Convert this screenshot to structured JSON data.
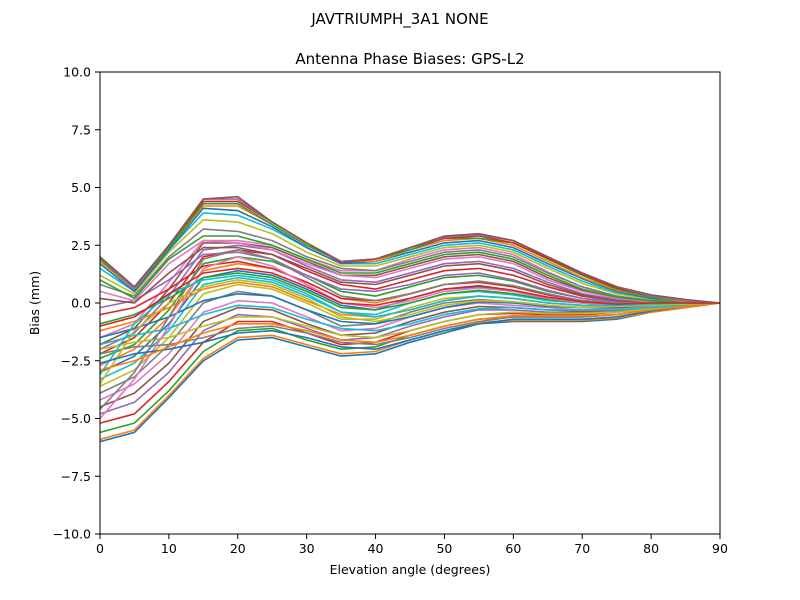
{
  "figure": {
    "suptitle": "JAVTRIUMPH_3A1  NONE"
  },
  "chart_data": {
    "type": "line",
    "title": "Antenna Phase Biases: GPS-L2",
    "xlabel": "Elevation angle (degrees)",
    "ylabel": "Bias (mm)",
    "xlim": [
      0,
      90
    ],
    "ylim": [
      -10,
      10
    ],
    "xticks": [
      0,
      10,
      20,
      30,
      40,
      50,
      60,
      70,
      80,
      90
    ],
    "xtick_labels": [
      "0",
      "10",
      "20",
      "30",
      "40",
      "50",
      "60",
      "70",
      "80",
      "90"
    ],
    "yticks": [
      -10,
      -7.5,
      -5,
      -2.5,
      0,
      2.5,
      5,
      7.5,
      10
    ],
    "ytick_labels": [
      "−10.0",
      "−7.5",
      "−5.0",
      "−2.5",
      "0.0",
      "2.5",
      "5.0",
      "7.5",
      "10.0"
    ],
    "grid": false,
    "colors": [
      "#1f77b4",
      "#ff7f0e",
      "#2ca02c",
      "#d62728",
      "#9467bd",
      "#8c564b",
      "#e377c2",
      "#7f7f7f",
      "#bcbd22",
      "#17becf"
    ],
    "x": [
      0,
      5,
      10,
      15,
      20,
      25,
      30,
      35,
      40,
      45,
      50,
      55,
      60,
      65,
      70,
      75,
      80,
      85,
      90
    ],
    "series": [
      {
        "values": [
          -6.0,
          -5.6,
          -4.1,
          -2.5,
          -1.6,
          -1.5,
          -1.9,
          -2.3,
          -2.2,
          -1.7,
          -1.3,
          -0.9,
          -0.8,
          -0.8,
          -0.8,
          -0.7,
          -0.4,
          -0.2,
          0.0
        ]
      },
      {
        "values": [
          -5.9,
          -5.5,
          -4.0,
          -2.4,
          -1.5,
          -1.4,
          -1.8,
          -2.2,
          -2.1,
          -1.6,
          -1.2,
          -0.85,
          -0.75,
          -0.75,
          -0.75,
          -0.65,
          -0.4,
          -0.2,
          0.0
        ]
      },
      {
        "values": [
          -5.6,
          -5.2,
          -3.8,
          -2.1,
          -1.2,
          -1.1,
          -1.6,
          -2.0,
          -1.9,
          -1.4,
          -1.0,
          -0.7,
          -0.6,
          -0.6,
          -0.6,
          -0.5,
          -0.3,
          -0.15,
          0.0
        ]
      },
      {
        "values": [
          -5.2,
          -4.8,
          -3.4,
          -1.7,
          -0.8,
          -0.8,
          -1.3,
          -1.8,
          -1.7,
          -1.2,
          -0.8,
          -0.5,
          -0.45,
          -0.5,
          -0.5,
          -0.4,
          -0.25,
          -0.1,
          0.0
        ]
      },
      {
        "values": [
          -4.8,
          -4.3,
          -3.0,
          -1.2,
          -0.5,
          -0.6,
          -1.1,
          -1.6,
          -1.5,
          -1.0,
          -0.6,
          -0.3,
          -0.3,
          -0.4,
          -0.4,
          -0.35,
          -0.2,
          -0.1,
          0.0
        ]
      },
      {
        "values": [
          -4.5,
          -3.9,
          -2.6,
          -0.8,
          -0.2,
          -0.3,
          -0.9,
          -1.4,
          -1.3,
          -0.8,
          -0.4,
          -0.15,
          -0.2,
          -0.3,
          -0.35,
          -0.3,
          -0.2,
          -0.1,
          0.0
        ]
      },
      {
        "values": [
          -4.2,
          -3.5,
          -2.2,
          -0.4,
          0.1,
          0.0,
          -0.6,
          -1.2,
          -1.1,
          -0.6,
          -0.2,
          0.0,
          -0.1,
          -0.2,
          -0.3,
          -0.25,
          -0.15,
          -0.05,
          0.0
        ]
      },
      {
        "values": [
          -3.9,
          -3.2,
          -1.8,
          0.0,
          0.5,
          0.3,
          -0.3,
          -1.0,
          -0.9,
          -0.4,
          0.0,
          0.15,
          0.05,
          -0.1,
          -0.2,
          -0.2,
          -0.1,
          -0.05,
          0.0
        ]
      },
      {
        "values": [
          -3.6,
          -2.9,
          -1.5,
          0.4,
          0.8,
          0.6,
          0.0,
          -0.7,
          -0.7,
          -0.2,
          0.2,
          0.3,
          0.2,
          0.0,
          -0.1,
          -0.15,
          -0.1,
          -0.05,
          0.0
        ]
      },
      {
        "values": [
          -3.3,
          -2.6,
          -1.2,
          0.8,
          1.1,
          0.9,
          0.3,
          -0.4,
          -0.5,
          0.0,
          0.4,
          0.5,
          0.35,
          0.1,
          0.0,
          -0.1,
          -0.05,
          0.0,
          0.0
        ]
      },
      {
        "values": [
          -3.0,
          -2.3,
          -0.9,
          1.1,
          1.4,
          1.2,
          0.6,
          -0.1,
          -0.3,
          0.2,
          0.6,
          0.7,
          0.5,
          0.2,
          0.05,
          -0.05,
          -0.05,
          0.0,
          0.0
        ]
      },
      {
        "values": [
          -2.7,
          -2.0,
          -0.6,
          1.4,
          1.7,
          1.5,
          0.9,
          0.2,
          0.0,
          0.4,
          0.8,
          0.9,
          0.7,
          0.35,
          0.1,
          0.0,
          0.0,
          0.0,
          0.0
        ]
      },
      {
        "values": [
          -2.4,
          -1.8,
          -0.3,
          1.7,
          2.0,
          1.8,
          1.2,
          0.5,
          0.3,
          0.7,
          1.1,
          1.2,
          0.95,
          0.5,
          0.2,
          0.05,
          0.0,
          0.0,
          0.0
        ]
      },
      {
        "values": [
          -2.2,
          -1.5,
          0.0,
          2.0,
          2.3,
          2.1,
          1.4,
          0.8,
          0.6,
          1.0,
          1.4,
          1.5,
          1.2,
          0.7,
          0.3,
          0.1,
          0.05,
          0.0,
          0.0
        ]
      },
      {
        "values": [
          -2.0,
          -1.3,
          0.3,
          2.3,
          2.5,
          2.3,
          1.6,
          1.0,
          0.9,
          1.3,
          1.7,
          1.8,
          1.5,
          0.9,
          0.4,
          0.15,
          0.05,
          0.0,
          0.0
        ]
      },
      {
        "values": [
          -1.8,
          -1.1,
          0.6,
          2.6,
          2.6,
          2.4,
          1.8,
          1.2,
          1.2,
          1.6,
          2.0,
          2.1,
          1.8,
          1.1,
          0.55,
          0.2,
          0.1,
          0.0,
          0.0
        ]
      },
      {
        "values": [
          -1.5,
          -0.9,
          0.9,
          2.7,
          2.7,
          2.5,
          1.9,
          1.4,
          1.4,
          1.9,
          2.3,
          2.4,
          2.1,
          1.35,
          0.7,
          0.3,
          0.1,
          0.0,
          0.0
        ]
      },
      {
        "values": [
          -2.2,
          -1.9,
          -1.8,
          -1.5,
          -1.1,
          -1.0,
          -1.3,
          -1.7,
          -1.8,
          -1.5,
          -1.1,
          -0.8,
          -0.6,
          -0.6,
          -0.6,
          -0.5,
          -0.3,
          -0.15,
          0.0
        ]
      },
      {
        "values": [
          -2.0,
          -1.7,
          -1.5,
          -1.0,
          -0.6,
          -0.6,
          -1.0,
          -1.4,
          -1.5,
          -1.2,
          -0.8,
          -0.5,
          -0.4,
          -0.45,
          -0.45,
          -0.4,
          -0.25,
          -0.1,
          0.0
        ]
      },
      {
        "values": [
          -1.8,
          -1.4,
          -1.1,
          -0.5,
          -0.1,
          -0.2,
          -0.7,
          -1.1,
          -1.2,
          -0.9,
          -0.5,
          -0.25,
          -0.2,
          -0.3,
          -0.3,
          -0.3,
          -0.2,
          -0.1,
          0.0
        ]
      },
      {
        "values": [
          -1.5,
          -1.1,
          -0.6,
          0.1,
          0.4,
          0.3,
          -0.3,
          -0.8,
          -0.9,
          -0.6,
          -0.2,
          0.05,
          0.0,
          -0.15,
          -0.2,
          -0.2,
          -0.1,
          -0.05,
          0.0
        ]
      },
      {
        "values": [
          -1.2,
          -0.8,
          -0.2,
          0.6,
          0.9,
          0.7,
          0.1,
          -0.5,
          -0.6,
          -0.3,
          0.1,
          0.3,
          0.2,
          0.0,
          -0.1,
          -0.1,
          -0.05,
          0.0,
          0.0
        ]
      },
      {
        "values": [
          -0.9,
          -0.5,
          0.2,
          1.1,
          1.3,
          1.1,
          0.5,
          -0.2,
          -0.3,
          0.0,
          0.4,
          0.55,
          0.4,
          0.15,
          0.0,
          -0.05,
          0.0,
          0.0,
          0.0
        ]
      },
      {
        "values": [
          -0.5,
          -0.2,
          0.6,
          1.6,
          1.8,
          1.5,
          0.9,
          0.2,
          0.1,
          0.4,
          0.8,
          0.9,
          0.7,
          0.35,
          0.1,
          0.0,
          0.0,
          0.0,
          0.0
        ]
      },
      {
        "values": [
          -0.2,
          0.1,
          1.0,
          2.1,
          2.2,
          1.9,
          1.2,
          0.6,
          0.5,
          0.8,
          1.2,
          1.3,
          1.0,
          0.55,
          0.2,
          0.05,
          0.0,
          0.0,
          0.0
        ]
      },
      {
        "values": [
          0.2,
          0.0,
          1.3,
          2.4,
          2.4,
          2.1,
          1.5,
          0.9,
          0.8,
          1.2,
          1.6,
          1.7,
          1.4,
          0.8,
          0.35,
          0.1,
          0.05,
          0.0,
          0.0
        ]
      },
      {
        "values": [
          0.5,
          0.1,
          1.7,
          2.7,
          2.6,
          2.3,
          1.7,
          1.2,
          1.1,
          1.5,
          1.9,
          2.0,
          1.7,
          1.0,
          0.5,
          0.2,
          0.05,
          0.0,
          0.0
        ]
      },
      {
        "values": [
          0.8,
          0.3,
          2.0,
          3.2,
          3.1,
          2.7,
          2.0,
          1.5,
          1.4,
          1.8,
          2.2,
          2.3,
          2.0,
          1.3,
          0.7,
          0.3,
          0.1,
          0.0,
          0.0
        ]
      },
      {
        "values": [
          1.2,
          0.4,
          2.2,
          3.6,
          3.5,
          3.0,
          2.2,
          1.6,
          1.6,
          2.0,
          2.4,
          2.5,
          2.2,
          1.5,
          0.85,
          0.4,
          0.15,
          0.05,
          0.0
        ]
      },
      {
        "values": [
          1.5,
          0.5,
          2.3,
          3.9,
          3.8,
          3.2,
          2.4,
          1.7,
          1.7,
          2.1,
          2.5,
          2.6,
          2.3,
          1.6,
          0.95,
          0.45,
          0.2,
          0.05,
          0.0
        ]
      },
      {
        "values": [
          1.7,
          0.5,
          2.3,
          4.1,
          4.0,
          3.3,
          2.4,
          1.7,
          1.8,
          2.2,
          2.6,
          2.7,
          2.4,
          1.7,
          1.05,
          0.5,
          0.2,
          0.05,
          0.0
        ]
      },
      {
        "values": [
          1.8,
          0.6,
          2.4,
          4.2,
          4.2,
          3.4,
          2.5,
          1.8,
          1.8,
          2.3,
          2.7,
          2.8,
          2.5,
          1.8,
          1.1,
          0.55,
          0.25,
          0.05,
          0.0
        ]
      },
      {
        "values": [
          1.9,
          0.6,
          2.4,
          4.3,
          4.3,
          3.4,
          2.5,
          1.8,
          1.9,
          2.3,
          2.8,
          2.8,
          2.6,
          1.9,
          1.2,
          0.6,
          0.25,
          0.1,
          0.0
        ]
      },
      {
        "values": [
          2.0,
          0.6,
          2.5,
          4.4,
          4.4,
          3.5,
          2.6,
          1.8,
          1.9,
          2.4,
          2.8,
          2.9,
          2.6,
          1.95,
          1.25,
          0.65,
          0.3,
          0.1,
          0.0
        ]
      },
      {
        "values": [
          2.0,
          0.6,
          2.5,
          4.5,
          4.5,
          3.5,
          2.6,
          1.8,
          1.9,
          2.4,
          2.85,
          2.95,
          2.7,
          2.0,
          1.3,
          0.7,
          0.3,
          0.1,
          0.0
        ]
      },
      {
        "values": [
          2.0,
          0.7,
          2.5,
          4.5,
          4.6,
          3.5,
          2.6,
          1.75,
          1.9,
          2.4,
          2.9,
          3.0,
          2.7,
          2.0,
          1.3,
          0.7,
          0.35,
          0.15,
          0.0
        ]
      },
      {
        "values": [
          -5.0,
          -3.3,
          -1.0,
          1.5,
          2.0,
          1.6,
          0.8,
          0.0,
          -0.2,
          0.1,
          0.5,
          0.65,
          0.5,
          0.2,
          0.0,
          -0.1,
          -0.05,
          0.0,
          0.0
        ]
      },
      {
        "values": [
          -4.6,
          -3.0,
          -0.6,
          1.9,
          2.3,
          1.9,
          1.1,
          0.3,
          0.1,
          0.4,
          0.8,
          0.95,
          0.75,
          0.4,
          0.1,
          0.0,
          0.0,
          0.0,
          0.0
        ]
      },
      {
        "values": [
          -3.5,
          -1.2,
          0.0,
          0.7,
          1.0,
          0.8,
          0.2,
          -0.6,
          -0.8,
          -0.5,
          -0.1,
          0.1,
          0.05,
          -0.1,
          -0.2,
          -0.15,
          -0.1,
          -0.05,
          0.0
        ]
      },
      {
        "values": [
          -3.1,
          -0.9,
          0.4,
          1.0,
          1.2,
          1.0,
          0.4,
          -0.4,
          -0.6,
          -0.3,
          0.1,
          0.3,
          0.2,
          0.0,
          -0.1,
          -0.1,
          -0.05,
          0.0,
          0.0
        ]
      },
      {
        "values": [
          -2.6,
          -2.2,
          -2.0,
          -1.7,
          -1.3,
          -1.2,
          -1.5,
          -1.9,
          -2.0,
          -1.6,
          -1.2,
          -0.9,
          -0.7,
          -0.7,
          -0.7,
          -0.6,
          -0.35,
          -0.15,
          0.0
        ]
      },
      {
        "values": [
          -2.9,
          -2.5,
          -1.9,
          -1.3,
          -0.9,
          -0.9,
          -1.2,
          -1.6,
          -1.7,
          -1.4,
          -1.0,
          -0.7,
          -0.55,
          -0.55,
          -0.55,
          -0.5,
          -0.3,
          -0.15,
          0.0
        ]
      },
      {
        "values": [
          1.0,
          0.2,
          1.9,
          2.9,
          2.9,
          2.5,
          1.9,
          1.3,
          1.3,
          1.7,
          2.1,
          2.2,
          1.9,
          1.2,
          0.6,
          0.25,
          0.1,
          0.0,
          0.0
        ]
      },
      {
        "values": [
          -1.0,
          -0.6,
          0.4,
          1.3,
          1.5,
          1.3,
          0.7,
          0.0,
          -0.1,
          0.2,
          0.6,
          0.75,
          0.55,
          0.25,
          0.05,
          -0.05,
          0.0,
          0.0,
          0.0
        ]
      }
    ]
  }
}
